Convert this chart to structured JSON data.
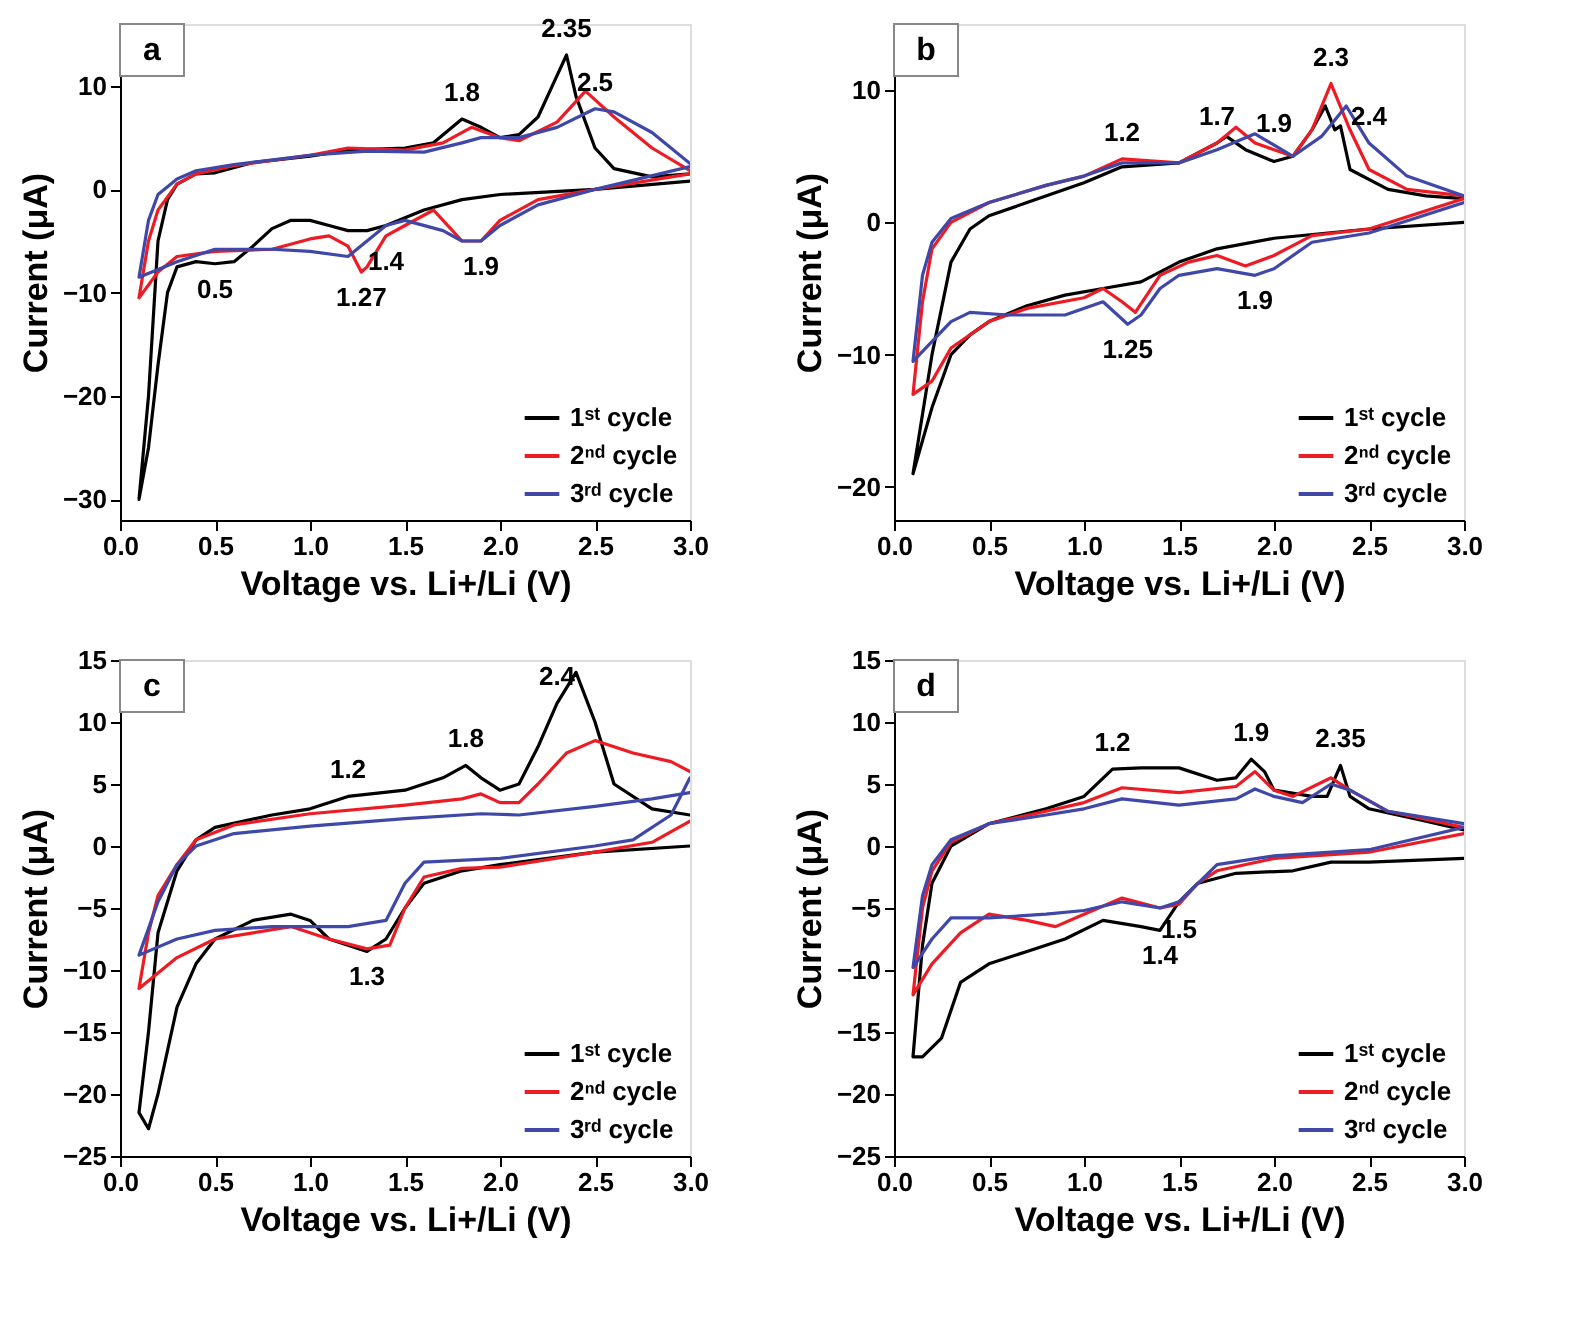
{
  "chart_data": [
    {
      "type": "line",
      "title": "a",
      "xlabel": "Voltage vs. Li+/Li (V)",
      "ylabel": "Current (μA)",
      "xlim": [
        0,
        3
      ],
      "ylim": [
        -32,
        16
      ],
      "xticks": [
        {
          "value": 0,
          "label": "0.0"
        },
        {
          "value": 0.5,
          "label": "0.5"
        },
        {
          "value": 1,
          "label": "1.0"
        },
        {
          "value": 1.5,
          "label": "1.5"
        },
        {
          "value": 2,
          "label": "2.0"
        },
        {
          "value": 2.5,
          "label": "2.5"
        },
        {
          "value": 3,
          "label": "3.0"
        }
      ],
      "yticks": [
        -30,
        -20,
        -10,
        0,
        10
      ],
      "grid": false,
      "legend": "bottom right",
      "marker": "none",
      "line_style": "solid",
      "series": [
        {
          "name": "1ˢᵗ cycle",
          "color": "#000000",
          "x": [
            3.0,
            2.5,
            2.0,
            1.8,
            1.6,
            1.4,
            1.3,
            1.2,
            1.1,
            1.0,
            0.9,
            0.8,
            0.7,
            0.6,
            0.5,
            0.4,
            0.3,
            0.25,
            0.2,
            0.15,
            0.1,
            0.15,
            0.2,
            0.25,
            0.3,
            0.4,
            0.5,
            0.7,
            1.0,
            1.2,
            1.5,
            1.65,
            1.8,
            1.9,
            2.0,
            2.1,
            2.2,
            2.3,
            2.35,
            2.4,
            2.5,
            2.6,
            2.8,
            3.0
          ],
          "values": [
            0.8,
            0,
            -0.5,
            -1,
            -2,
            -3.5,
            -4,
            -4,
            -3.5,
            -3,
            -3,
            -3.8,
            -5.5,
            -7,
            -7.2,
            -7,
            -7.5,
            -10,
            -17,
            -25,
            -30,
            -20,
            -5,
            -1,
            0.5,
            1.5,
            1.6,
            2.6,
            3.2,
            3.8,
            4,
            4.5,
            6.8,
            6,
            5,
            5.3,
            7,
            11,
            13,
            9,
            4,
            2,
            1.2,
            1.5
          ]
        },
        {
          "name": "2ⁿᵈ cycle",
          "color": "#ed1c24",
          "x": [
            3.0,
            2.5,
            2.2,
            2.0,
            1.9,
            1.8,
            1.7,
            1.65,
            1.5,
            1.4,
            1.3,
            1.27,
            1.2,
            1.1,
            1.0,
            0.8,
            0.5,
            0.3,
            0.2,
            0.1,
            0.15,
            0.2,
            0.3,
            0.4,
            0.6,
            1.0,
            1.2,
            1.5,
            1.7,
            1.85,
            2.0,
            2.1,
            2.3,
            2.45,
            2.6,
            2.8,
            3.0
          ],
          "values": [
            1.5,
            0,
            -1,
            -3,
            -5,
            -5,
            -3,
            -2,
            -3.5,
            -4.5,
            -7.5,
            -8,
            -5.5,
            -4.5,
            -4.8,
            -5.8,
            -6,
            -6.5,
            -8,
            -10.5,
            -5,
            -2,
            0.5,
            1.5,
            2.3,
            3.3,
            4,
            3.8,
            4.5,
            6,
            5,
            4.7,
            6.5,
            9.5,
            7,
            4,
            1.8
          ]
        },
        {
          "name": "3ʳᵈ cycle",
          "color": "#3f48a8",
          "x": [
            3.0,
            2.5,
            2.2,
            2.0,
            1.9,
            1.8,
            1.7,
            1.5,
            1.4,
            1.3,
            1.2,
            1.0,
            0.8,
            0.5,
            0.3,
            0.1,
            0.15,
            0.2,
            0.3,
            0.4,
            0.6,
            1.0,
            1.3,
            1.6,
            1.8,
            1.9,
            2.1,
            2.3,
            2.5,
            2.6,
            2.8,
            3.0
          ],
          "values": [
            2.2,
            0,
            -1.5,
            -3.5,
            -5,
            -5,
            -4,
            -3,
            -3.5,
            -5,
            -6.5,
            -6,
            -5.8,
            -5.8,
            -7,
            -8.5,
            -3,
            -0.5,
            1,
            1.8,
            2.4,
            3.3,
            3.7,
            3.6,
            4.5,
            5,
            5,
            6,
            7.8,
            7.5,
            5.5,
            2.5
          ]
        }
      ],
      "annotations": [
        {
          "text": "2.35",
          "x": 2.35,
          "y": 13
        },
        {
          "text": "1.8",
          "x": 1.8,
          "y": 6.8
        },
        {
          "text": "2.5",
          "x": 2.5,
          "y": 7.8
        },
        {
          "text": "0.5",
          "x": 0.5,
          "y": -7.2
        },
        {
          "text": "1.27",
          "x": 1.27,
          "y": -8
        },
        {
          "text": "1.4",
          "x": 1.4,
          "y": -4.5
        },
        {
          "text": "1.9",
          "x": 1.9,
          "y": -5
        }
      ]
    },
    {
      "type": "line",
      "title": "b",
      "xlabel": "Voltage vs. Li+/Li (V)",
      "ylabel": "Current (μA)",
      "xlim": [
        0,
        3
      ],
      "ylim": [
        -22.5,
        15
      ],
      "xticks": [
        {
          "value": 0,
          "label": "0.0"
        },
        {
          "value": 0.5,
          "label": "0.5"
        },
        {
          "value": 1,
          "label": "1.0"
        },
        {
          "value": 1.5,
          "label": "1.5"
        },
        {
          "value": 2,
          "label": "2.0"
        },
        {
          "value": 2.5,
          "label": "2.5"
        },
        {
          "value": 3,
          "label": "3.0"
        }
      ],
      "yticks": [
        -20,
        -10,
        0,
        10
      ],
      "grid": false,
      "legend": "bottom right",
      "marker": "none",
      "line_style": "solid",
      "series": [
        {
          "name": "1ˢᵗ cycle",
          "color": "#000000",
          "x": [
            3.0,
            2.5,
            2.0,
            1.7,
            1.5,
            1.3,
            1.1,
            0.9,
            0.7,
            0.5,
            0.4,
            0.3,
            0.2,
            0.1,
            0.2,
            0.3,
            0.4,
            0.5,
            0.7,
            1.0,
            1.2,
            1.5,
            1.7,
            1.75,
            1.85,
            2.0,
            2.1,
            2.2,
            2.27,
            2.32,
            2.35,
            2.4,
            2.6,
            2.8,
            3.0
          ],
          "values": [
            0,
            -0.5,
            -1.2,
            -2,
            -3,
            -4.5,
            -5,
            -5.5,
            -6.3,
            -7.5,
            -8.5,
            -10,
            -14,
            -19,
            -10,
            -3,
            -0.5,
            0.5,
            1.5,
            3,
            4.2,
            4.5,
            6,
            6.5,
            5.5,
            4.6,
            5,
            7,
            8.8,
            7,
            7.3,
            4,
            2.5,
            2,
            1.8
          ]
        },
        {
          "name": "2ⁿᵈ cycle",
          "color": "#ed1c24",
          "x": [
            3.0,
            2.5,
            2.2,
            2.0,
            1.85,
            1.7,
            1.55,
            1.4,
            1.27,
            1.2,
            1.1,
            1.0,
            0.7,
            0.5,
            0.3,
            0.2,
            0.1,
            0.15,
            0.2,
            0.3,
            0.5,
            0.8,
            1.0,
            1.2,
            1.5,
            1.7,
            1.8,
            1.9,
            2.0,
            2.1,
            2.2,
            2.3,
            2.4,
            2.5,
            2.7,
            3.0
          ],
          "values": [
            1.8,
            -0.5,
            -1,
            -2.5,
            -3.3,
            -2.5,
            -3,
            -4,
            -6.8,
            -6,
            -5,
            -5.7,
            -6.5,
            -7.5,
            -9.5,
            -12,
            -13,
            -6,
            -2,
            0,
            1.5,
            2.8,
            3.5,
            4.8,
            4.5,
            6,
            7.2,
            6,
            5.5,
            5,
            7,
            10.5,
            7,
            4,
            2.5,
            2
          ]
        },
        {
          "name": "3ʳᵈ cycle",
          "color": "#3f48a8",
          "x": [
            3.0,
            2.5,
            2.2,
            2.0,
            1.9,
            1.7,
            1.5,
            1.4,
            1.3,
            1.23,
            1.1,
            0.9,
            0.6,
            0.4,
            0.3,
            0.1,
            0.15,
            0.2,
            0.3,
            0.5,
            0.8,
            1.0,
            1.2,
            1.5,
            1.7,
            1.9,
            2.1,
            2.25,
            2.38,
            2.5,
            2.7,
            3.0
          ],
          "values": [
            1.5,
            -0.8,
            -1.5,
            -3.5,
            -4,
            -3.5,
            -4,
            -5,
            -7,
            -7.7,
            -6,
            -7,
            -7,
            -6.8,
            -7.5,
            -10.5,
            -4,
            -1.5,
            0.3,
            1.5,
            2.8,
            3.5,
            4.5,
            4.5,
            5.5,
            6.7,
            5,
            6.5,
            8.8,
            6,
            3.5,
            2
          ]
        }
      ],
      "annotations": [
        {
          "text": "1.2",
          "x": 1.2,
          "y": 4.8
        },
        {
          "text": "1.7",
          "x": 1.7,
          "y": 6
        },
        {
          "text": "1.9",
          "x": 2.0,
          "y": 5.5
        },
        {
          "text": "2.3",
          "x": 2.3,
          "y": 10.5
        },
        {
          "text": "2.4",
          "x": 2.5,
          "y": 6
        },
        {
          "text": "1.9",
          "x": 1.9,
          "y": -4
        },
        {
          "text": "1.25",
          "x": 1.23,
          "y": -7.7
        }
      ]
    },
    {
      "type": "line",
      "title": "c",
      "xlabel": "Voltage vs. Li+/Li (V)",
      "ylabel": "Current (μA)",
      "xlim": [
        0,
        3
      ],
      "ylim": [
        -25,
        15
      ],
      "xticks": [
        {
          "value": 0,
          "label": "0.0"
        },
        {
          "value": 0.5,
          "label": "0.5"
        },
        {
          "value": 1,
          "label": "1.0"
        },
        {
          "value": 1.5,
          "label": "1.5"
        },
        {
          "value": 2,
          "label": "2.0"
        },
        {
          "value": 2.5,
          "label": "2.5"
        },
        {
          "value": 3,
          "label": "3.0"
        }
      ],
      "yticks": [
        -25,
        -20,
        -15,
        -10,
        -5,
        0,
        5,
        10,
        15
      ],
      "grid": false,
      "legend": "bottom right",
      "marker": "none",
      "line_style": "solid",
      "series": [
        {
          "name": "1ˢᵗ cycle",
          "color": "#000000",
          "x": [
            3.0,
            2.5,
            2.0,
            1.8,
            1.6,
            1.5,
            1.4,
            1.3,
            1.1,
            1.0,
            0.9,
            0.7,
            0.5,
            0.4,
            0.3,
            0.2,
            0.15,
            0.1,
            0.15,
            0.2,
            0.3,
            0.4,
            0.5,
            0.8,
            1.0,
            1.2,
            1.5,
            1.7,
            1.82,
            1.9,
            2.0,
            2.1,
            2.2,
            2.3,
            2.4,
            2.5,
            2.6,
            2.8,
            3.0
          ],
          "values": [
            0,
            -0.5,
            -1.5,
            -2,
            -3,
            -5,
            -7.5,
            -8.5,
            -7.5,
            -6,
            -5.5,
            -6,
            -7.5,
            -9.5,
            -13,
            -20,
            -22.8,
            -21.5,
            -15,
            -7,
            -2,
            0.5,
            1.5,
            2.5,
            3,
            4,
            4.5,
            5.5,
            6.5,
            5.5,
            4.5,
            5,
            8,
            11.5,
            14,
            10,
            5,
            3,
            2.5
          ]
        },
        {
          "name": "2ⁿᵈ cycle",
          "color": "#ed1c24",
          "x": [
            3.0,
            2.8,
            2.5,
            2.0,
            1.8,
            1.6,
            1.5,
            1.42,
            1.3,
            1.1,
            0.9,
            0.7,
            0.5,
            0.3,
            0.1,
            0.15,
            0.2,
            0.3,
            0.4,
            0.6,
            1.0,
            1.5,
            1.8,
            1.9,
            2.0,
            2.1,
            2.2,
            2.35,
            2.5,
            2.7,
            2.9,
            3.0
          ],
          "values": [
            2,
            0.3,
            -0.5,
            -1.7,
            -1.8,
            -2.5,
            -5,
            -8,
            -8.3,
            -7.5,
            -6.5,
            -7,
            -7.5,
            -9,
            -11.5,
            -7,
            -4,
            -1.5,
            0.5,
            1.7,
            2.6,
            3.3,
            3.8,
            4.2,
            3.5,
            3.5,
            5,
            7.5,
            8.5,
            7.5,
            6.8,
            6
          ]
        },
        {
          "name": "3ʳᵈ cycle",
          "color": "#3f48a8",
          "x": [
            3.0,
            2.9,
            2.7,
            2.5,
            2.0,
            1.6,
            1.5,
            1.4,
            1.2,
            0.8,
            0.5,
            0.3,
            0.1,
            0.2,
            0.3,
            0.4,
            0.6,
            1.0,
            1.5,
            1.9,
            2.1,
            2.5,
            2.8,
            3.0
          ],
          "values": [
            5.5,
            2.5,
            0.5,
            0,
            -1,
            -1.3,
            -3,
            -6,
            -6.5,
            -6.5,
            -6.8,
            -7.5,
            -8.8,
            -4.5,
            -1.5,
            0,
            1,
            1.6,
            2.2,
            2.6,
            2.5,
            3.2,
            3.8,
            4.3
          ]
        }
      ],
      "annotations": [
        {
          "text": "2.4",
          "x": 2.3,
          "y": 11.5
        },
        {
          "text": "1.8",
          "x": 1.82,
          "y": 6.5
        },
        {
          "text": "1.2",
          "x": 1.2,
          "y": 4
        },
        {
          "text": "1.3",
          "x": 1.3,
          "y": -8.5
        }
      ]
    },
    {
      "type": "line",
      "title": "d",
      "xlabel": "Voltage vs. Li+/Li (V)",
      "ylabel": "Current (μA)",
      "xlim": [
        0,
        3
      ],
      "ylim": [
        -25,
        15
      ],
      "xticks": [
        {
          "value": 0,
          "label": "0.0"
        },
        {
          "value": 0.5,
          "label": "0.5"
        },
        {
          "value": 1,
          "label": "1.0"
        },
        {
          "value": 1.5,
          "label": "1.5"
        },
        {
          "value": 2,
          "label": "2.0"
        },
        {
          "value": 2.5,
          "label": "2.5"
        },
        {
          "value": 3,
          "label": "3.0"
        }
      ],
      "yticks": [
        -25,
        -20,
        -15,
        -10,
        -5,
        0,
        5,
        10,
        15
      ],
      "grid": false,
      "legend": "bottom right",
      "marker": "none",
      "line_style": "solid",
      "series": [
        {
          "name": "1ˢᵗ cycle",
          "color": "#000000",
          "x": [
            3.0,
            2.5,
            2.3,
            2.1,
            1.8,
            1.6,
            1.5,
            1.4,
            1.3,
            1.1,
            0.9,
            0.7,
            0.5,
            0.35,
            0.25,
            0.15,
            0.1,
            0.15,
            0.2,
            0.3,
            0.5,
            0.8,
            1.0,
            1.15,
            1.3,
            1.5,
            1.7,
            1.8,
            1.88,
            1.95,
            2.0,
            2.2,
            2.28,
            2.35,
            2.4,
            2.5,
            2.8,
            3.0
          ],
          "values": [
            -1,
            -1.3,
            -1.3,
            -2,
            -2.2,
            -3,
            -4.5,
            -6.8,
            -6.5,
            -6,
            -7.5,
            -8.5,
            -9.5,
            -11,
            -15.5,
            -17,
            -17,
            -8,
            -3,
            0,
            1.8,
            3,
            4,
            6.2,
            6.3,
            6.3,
            5.3,
            5.5,
            7,
            6,
            4.5,
            4,
            4,
            6.5,
            4,
            3,
            2,
            1.3
          ]
        },
        {
          "name": "2ⁿᵈ cycle",
          "color": "#ed1c24",
          "x": [
            3.0,
            2.5,
            2.0,
            1.7,
            1.6,
            1.5,
            1.4,
            1.2,
            1.0,
            0.85,
            0.7,
            0.5,
            0.35,
            0.2,
            0.1,
            0.15,
            0.2,
            0.3,
            0.5,
            0.8,
            1.0,
            1.2,
            1.5,
            1.8,
            1.9,
            2.0,
            2.1,
            2.3,
            2.4,
            2.6,
            3.0
          ],
          "values": [
            1,
            -0.5,
            -1,
            -2,
            -3,
            -4.7,
            -5,
            -4.2,
            -5.5,
            -6.5,
            -6,
            -5.5,
            -7,
            -9.5,
            -12,
            -5,
            -2,
            0.3,
            1.8,
            2.8,
            3.5,
            4.7,
            4.3,
            4.8,
            6,
            4.5,
            4,
            5.5,
            4.5,
            2.8,
            1.5
          ]
        },
        {
          "name": "3ʳᵈ cycle",
          "color": "#3f48a8",
          "x": [
            3.0,
            2.5,
            2.0,
            1.7,
            1.5,
            1.4,
            1.2,
            1.0,
            0.8,
            0.5,
            0.3,
            0.2,
            0.1,
            0.15,
            0.2,
            0.3,
            0.5,
            0.8,
            1.0,
            1.2,
            1.5,
            1.8,
            1.9,
            2.0,
            2.15,
            2.3,
            2.4,
            2.6,
            3.0
          ],
          "values": [
            1.5,
            -0.3,
            -0.8,
            -1.5,
            -4.5,
            -5,
            -4.5,
            -5.2,
            -5.5,
            -5.8,
            -5.8,
            -7.5,
            -9.8,
            -4,
            -1.5,
            0.5,
            1.8,
            2.5,
            3,
            3.8,
            3.3,
            3.8,
            4.6,
            4,
            3.5,
            5,
            4.5,
            2.8,
            1.8
          ]
        }
      ],
      "annotations": [
        {
          "text": "1.2",
          "x": 1.15,
          "y": 6.2
        },
        {
          "text": "1.9",
          "x": 1.88,
          "y": 7
        },
        {
          "text": "2.35",
          "x": 2.35,
          "y": 6.5
        },
        {
          "text": "1.5",
          "x": 1.5,
          "y": -4.7
        },
        {
          "text": "1.4",
          "x": 1.4,
          "y": -6.8
        }
      ]
    }
  ]
}
